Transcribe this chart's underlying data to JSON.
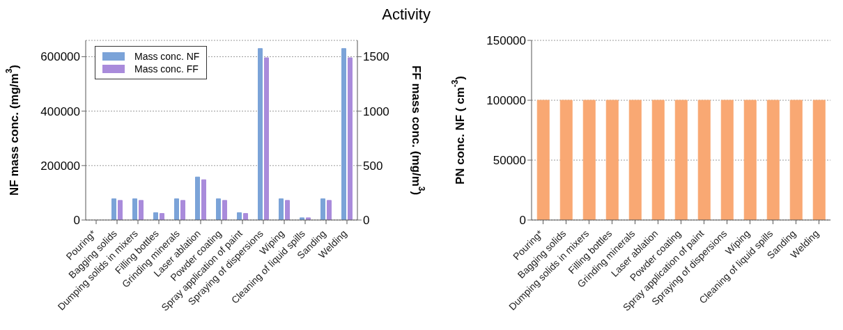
{
  "chart_data": [
    {
      "type": "bar",
      "title": "Activity",
      "ylabel": "NF mass conc. (mg/m$^{3}$)",
      "y2label": "FF mass conc. (mg/m$^{3}$)",
      "categories": [
        "Pouring*",
        "Bagging solids",
        "Dumping solids in mixers",
        "Filling bottles",
        "Grinding minerals",
        "Laser ablation",
        "Powder coating",
        "Spray application of paint",
        "Spraying of dispersions",
        "Wiping",
        "Cleaning of liquid spills",
        "Sanding",
        "Welding"
      ],
      "series": [
        {
          "name": "Mass conc. NF",
          "color": "#7ba3d8",
          "values": [
            0,
            78000,
            78000,
            27000,
            78000,
            158000,
            78000,
            27000,
            630000,
            78000,
            8000,
            78000,
            630000
          ]
        },
        {
          "name": "Mass conc. FF",
          "color": "#a98bdb",
          "axis": "y2",
          "values": [
            0,
            180,
            180,
            60,
            180,
            370,
            180,
            60,
            1490,
            180,
            20,
            180,
            1490
          ]
        }
      ],
      "ylim": [
        0,
        660000
      ],
      "yticks": [
        0,
        200000,
        400000,
        600000
      ],
      "y2lim": [
        0,
        1650
      ],
      "y2ticks": [
        0,
        500,
        1000,
        1500
      ],
      "grid": "y",
      "legend": "top left"
    },
    {
      "type": "bar",
      "ylabel": "PN conc. NF ( cm$^{-3}$)",
      "categories": [
        "Pouring*",
        "Bagging solids",
        "Dumping solids in mixers",
        "Filling bottles",
        "Grinding minerals",
        "Laser ablation",
        "Powder coating",
        "Spray application of paint",
        "Spraying of dispersions",
        "Wiping",
        "Cleaning of liquid spills",
        "Sanding",
        "Welding"
      ],
      "series": [
        {
          "color": "#f9a873",
          "values": [
            100000,
            100000,
            100000,
            100000,
            100000,
            100000,
            100000,
            100000,
            100000,
            100000,
            100000,
            100000,
            100000
          ]
        }
      ],
      "ylim": [
        0,
        150000
      ],
      "yticks": [
        0,
        50000,
        100000,
        150000
      ],
      "grid": "y"
    }
  ]
}
